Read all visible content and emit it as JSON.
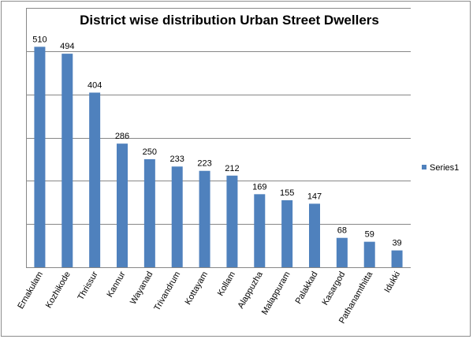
{
  "chart_data": {
    "type": "bar",
    "title": "District wise distribution Urban Street Dwellers",
    "xlabel": "",
    "ylabel": "",
    "ylim": [
      0,
      600
    ],
    "gridline_step": 100,
    "y_tick_labels_shown": false,
    "grid": true,
    "legend_position": "right",
    "bar_color": "#4f81bd",
    "categories": [
      "Ernakulam",
      "Kozhikode",
      "Thrissur",
      "Kannur",
      "Wayanad",
      "Trivandrum",
      "Kottayam",
      "Kollam",
      "Alappuzha",
      "Malappuram",
      "Palakkad",
      "Kasargod",
      "Pathanamthitta",
      "Idukki"
    ],
    "series": [
      {
        "name": "Series1",
        "values": [
          510,
          494,
          404,
          286,
          250,
          233,
          223,
          212,
          169,
          155,
          147,
          68,
          59,
          39
        ]
      }
    ]
  }
}
